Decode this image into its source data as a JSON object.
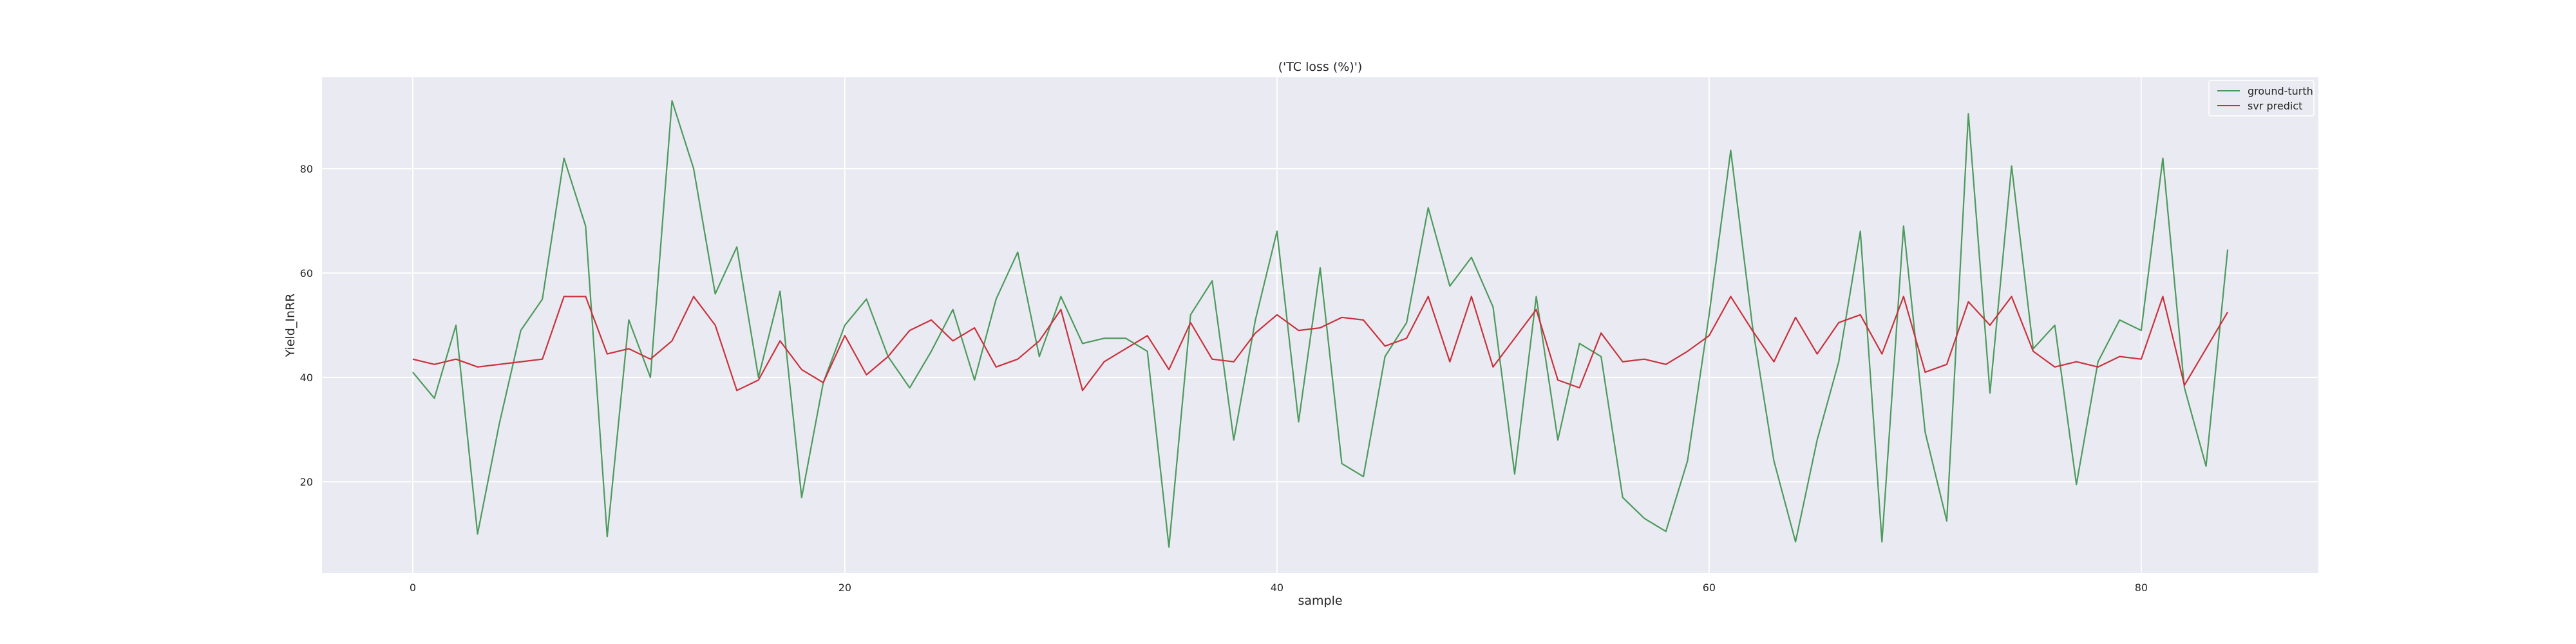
{
  "chart_data": {
    "type": "line",
    "title": "('TC loss (%)')",
    "xlabel": "sample",
    "ylabel": "Yield_InRR",
    "xlim": [
      -4.2,
      88.2
    ],
    "ylim": [
      2.5,
      97.5
    ],
    "xticks": [
      0,
      20,
      40,
      60,
      80
    ],
    "yticks": [
      20,
      40,
      60,
      80
    ],
    "grid": true,
    "legend_position": "top-right",
    "x": [
      0,
      1,
      2,
      3,
      4,
      5,
      6,
      7,
      8,
      9,
      10,
      11,
      12,
      13,
      14,
      15,
      16,
      17,
      18,
      19,
      20,
      21,
      22,
      23,
      24,
      25,
      26,
      27,
      28,
      29,
      30,
      31,
      32,
      33,
      34,
      35,
      36,
      37,
      38,
      39,
      40,
      41,
      42,
      43,
      44,
      45,
      46,
      47,
      48,
      49,
      50,
      51,
      52,
      53,
      54,
      55,
      56,
      57,
      58,
      59,
      60,
      61,
      62,
      63,
      64,
      65,
      66,
      67,
      68,
      69,
      70,
      71,
      72,
      73,
      74,
      75,
      76,
      77,
      78,
      79,
      80,
      81,
      82,
      83,
      84
    ],
    "series": [
      {
        "name": "ground-turth",
        "color": "#4C9A5C",
        "values": [
          41,
          36,
          50,
          10,
          31,
          49,
          55,
          82,
          69,
          9.5,
          51,
          40,
          93,
          80,
          56,
          65,
          40,
          56.5,
          17,
          39,
          50,
          55,
          44,
          38,
          45,
          53,
          39.5,
          55,
          64,
          44,
          55.5,
          46.5,
          47.5,
          47.5,
          45,
          7.5,
          52,
          58.5,
          28,
          51,
          68,
          31.5,
          61,
          23.5,
          21,
          44,
          50.5,
          72.5,
          57.5,
          63,
          53.5,
          21.5,
          55.5,
          28,
          46.5,
          44,
          17,
          13,
          10.5,
          24,
          52,
          83.5,
          50,
          24,
          8.5,
          28,
          43,
          68,
          8.5,
          69,
          29.5,
          12.5,
          90.5,
          37,
          80.5,
          45.5,
          50,
          19.5,
          43,
          51,
          49,
          82,
          38,
          23,
          64.5
        ]
      },
      {
        "name": "svr predict",
        "color": "#C8323C",
        "values": [
          43.5,
          42.5,
          43.5,
          42,
          42.5,
          43,
          43.5,
          55.5,
          55.5,
          44.5,
          45.5,
          43.5,
          47,
          55.5,
          50,
          37.5,
          39.5,
          47,
          41.5,
          39,
          48,
          40.5,
          44,
          49,
          51,
          47,
          49.5,
          42,
          43.5,
          47,
          53,
          37.5,
          43,
          45.5,
          48,
          41.5,
          50.5,
          43.5,
          43,
          48.5,
          52,
          49,
          49.5,
          51.5,
          51,
          46,
          47.5,
          55.5,
          43,
          55.5,
          42,
          47.5,
          53,
          39.5,
          38,
          48.5,
          43,
          43.5,
          42.5,
          45,
          48,
          55.5,
          49,
          43,
          51.5,
          44.5,
          50.5,
          52,
          44.5,
          55.5,
          41,
          42.5,
          54.5,
          50,
          55.5,
          45,
          42,
          43,
          42,
          44,
          43.5,
          55.5,
          38.5,
          45.5,
          52.5
        ]
      }
    ]
  }
}
